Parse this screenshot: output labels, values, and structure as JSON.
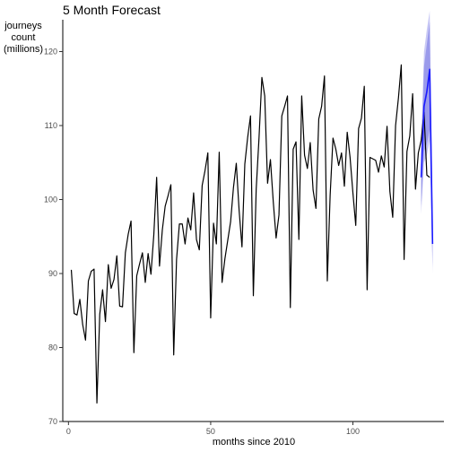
{
  "chart_data": {
    "type": "line",
    "title": "5 Month Forecast",
    "xlabel": "months since 2010",
    "ylabel_lines": [
      "journeys",
      "count",
      "(millions)"
    ],
    "xlim": [
      -2,
      132
    ],
    "ylim": [
      70,
      126
    ],
    "x_ticks": [
      0,
      50,
      100
    ],
    "y_ticks": [
      70,
      80,
      90,
      100,
      110,
      120
    ],
    "grid": false,
    "colors": {
      "history": "#000000",
      "forecast": "#1a1aff",
      "band_outer": "#c9c9f5",
      "band_inner": "#9a9aeb"
    },
    "series": [
      {
        "x_start": 1,
        "values": [
          90.5,
          84.6,
          84.4,
          86.5,
          83.1,
          81.0,
          89.0,
          90.3,
          90.6,
          72.5,
          84.5,
          87.8,
          83.5,
          91.2,
          88.0,
          89.2,
          92.4,
          85.6,
          85.5,
          92.8,
          95.3,
          97.1,
          79.3,
          89.7,
          91.3,
          92.8,
          88.8,
          92.7,
          89.9,
          95.2,
          103.0,
          91.0,
          95.9,
          99.1,
          100.5,
          102.0,
          79.0,
          91.9,
          96.7,
          96.7,
          94.0,
          97.5,
          95.9,
          100.9,
          94.6,
          93.2,
          101.9,
          103.9,
          106.3,
          84.0,
          96.8,
          94.0,
          106.4,
          88.8,
          92.0,
          94.5,
          97.0,
          101.6,
          104.9,
          98.5,
          93.6,
          104.8,
          108.4,
          111.3,
          87.0,
          101.4,
          108.4,
          116.5,
          114.0,
          102.2,
          105.4,
          99.7,
          94.8,
          97.9,
          111.3,
          112.6,
          114.0,
          85.4,
          106.8,
          107.8,
          94.6,
          114.0,
          106.0,
          104.2,
          107.7,
          101.3,
          98.8,
          110.9,
          112.6,
          116.7,
          89.0,
          100.6,
          108.3,
          106.8,
          104.6,
          106.3,
          101.8,
          109.1,
          105.7,
          100.9,
          96.5,
          109.6,
          111.0,
          115.3,
          87.8,
          105.7,
          105.5,
          105.3,
          103.7,
          105.9,
          104.4,
          109.9,
          101.1,
          97.6,
          110.0,
          113.7,
          118.2,
          91.9,
          106.5,
          108.6,
          114.3,
          101.4,
          106.3,
          108.0,
          111.8,
          103.3,
          103.0
        ]
      },
      {
        "name": "forecast",
        "x": [
          124,
          125,
          126,
          127,
          128
        ],
        "values": [
          103.0,
          112.6,
          114.6,
          117.6,
          94.0
        ],
        "lower_80": [
          99.0,
          106.5,
          107.5,
          109.5,
          91.0
        ],
        "upper_80": [
          106.5,
          118.0,
          121.0,
          124.0,
          97.5
        ],
        "lower_95": [
          98.0,
          105.0,
          106.0,
          108.0,
          90.0
        ],
        "upper_95": [
          107.5,
          120.0,
          123.0,
          125.5,
          98.5
        ]
      }
    ]
  }
}
